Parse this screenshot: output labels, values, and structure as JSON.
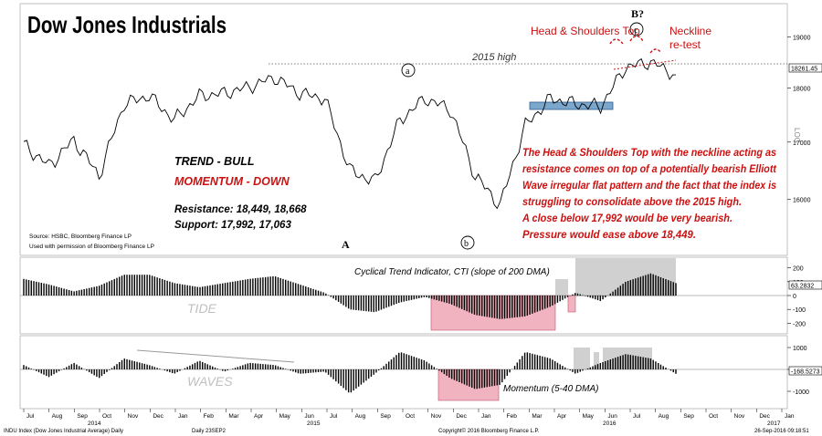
{
  "title": "Dow Jones Industrials",
  "labels": {
    "high_2015": "2015 high",
    "hs_top": "Head & Shoulders Top",
    "b_q": "B?",
    "c": "c",
    "a": "a",
    "b": "b",
    "A": "A",
    "neckline": [
      "Neckline",
      "re-test"
    ],
    "log": "LOG",
    "trend": "TREND - BULL",
    "momentum_down": "MOMENTUM - DOWN",
    "resistance": "Resistance: 18,449, 18,668",
    "support": "Support: 17,992, 17,063",
    "source": [
      "Source: HSBC, Bloomberg Finance LP",
      "Used with permission of Bloomberg Finance LP"
    ],
    "commentary": [
      "The Head & Shoulders Top with the neckline acting as",
      "resistance comes on top of a potentially bearish Elliott",
      "Wave irregular flat pattern and the fact that the index is",
      "struggling to consolidate above the 2015 high.",
      "A close below 17,992 would be very bearish.",
      "Pressure would ease above 18,449."
    ],
    "cti": "Cyclical Trend Indicator, CTI (slope of 200 DMA)",
    "tide": "TIDE",
    "waves": "WAVES",
    "momentum": "Momentum (5-40 DMA)"
  },
  "colors": {
    "price": "#000000",
    "annotation_red": "#cc1111",
    "support_box": "#7ba7cc",
    "pink_shade": "#f1b3bf",
    "gray_shade": "#c8c8c8"
  },
  "footer": {
    "left": "INDU Index (Dow Jones Industrial Average) Daily",
    "mid": "Daily 23SEP2",
    "copyright": "Copyright© 2016 Bloomberg Finance L.P.",
    "date": "26-Sep-2016 09:18:51"
  },
  "chart_data": [
    {
      "type": "line",
      "name": "price",
      "title": "Dow Jones Industrials",
      "scale": "log",
      "ylim": [
        15200,
        19600
      ],
      "yticks": [
        16000,
        17000,
        18000,
        19000
      ],
      "last_value_label": "18261.45",
      "reference_line": {
        "label": "2015 high",
        "value": 18351
      },
      "x": [
        "2014-07",
        "2014-08",
        "2014-09",
        "2014-10",
        "2014-11",
        "2014-12",
        "2015-01",
        "2015-02",
        "2015-03",
        "2015-04",
        "2015-05",
        "2015-06",
        "2015-07",
        "2015-08",
        "2015-09",
        "2015-10",
        "2015-11",
        "2015-12",
        "2016-01",
        "2016-02",
        "2016-03",
        "2016-04",
        "2016-05",
        "2016-06",
        "2016-07",
        "2016-08",
        "2016-09"
      ],
      "values": [
        16950,
        16580,
        17040,
        16400,
        17700,
        17850,
        17400,
        17850,
        17900,
        18020,
        18200,
        17900,
        17800,
        16500,
        16300,
        17400,
        17800,
        17600,
        16400,
        15900,
        17300,
        17800,
        17700,
        17650,
        18400,
        18500,
        18250
      ]
    },
    {
      "type": "bar",
      "name": "Cyclical Trend Indicator, CTI (slope of 200 DMA)",
      "ylim": [
        -250,
        250
      ],
      "yticks": [
        -200,
        -100,
        0,
        100,
        200
      ],
      "last_value_label": "63.2832",
      "x": [
        "2014-07",
        "2014-08",
        "2014-09",
        "2014-10",
        "2014-11",
        "2014-12",
        "2015-01",
        "2015-02",
        "2015-03",
        "2015-04",
        "2015-05",
        "2015-06",
        "2015-07",
        "2015-08",
        "2015-09",
        "2015-10",
        "2015-11",
        "2015-12",
        "2016-01",
        "2016-02",
        "2016-03",
        "2016-04",
        "2016-05",
        "2016-06",
        "2016-07",
        "2016-08",
        "2016-09"
      ],
      "values": [
        120,
        80,
        30,
        70,
        150,
        150,
        90,
        60,
        90,
        120,
        140,
        80,
        20,
        -100,
        -120,
        -50,
        -10,
        -60,
        -140,
        -170,
        -150,
        -80,
        20,
        -40,
        100,
        160,
        90
      ]
    },
    {
      "type": "bar",
      "name": "Momentum (5-40 DMA)",
      "ylim": [
        -1500,
        1500
      ],
      "yticks": [
        -1000,
        0,
        1000
      ],
      "last_value_label": "-168.5273",
      "x": [
        "2014-07",
        "2014-08",
        "2014-09",
        "2014-10",
        "2014-11",
        "2014-12",
        "2015-01",
        "2015-02",
        "2015-03",
        "2015-04",
        "2015-05",
        "2015-06",
        "2015-07",
        "2015-08",
        "2015-09",
        "2015-10",
        "2015-11",
        "2015-12",
        "2016-01",
        "2016-02",
        "2016-03",
        "2016-04",
        "2016-05",
        "2016-06",
        "2016-07",
        "2016-08",
        "2016-09"
      ],
      "values": [
        200,
        -350,
        300,
        -400,
        500,
        200,
        -200,
        400,
        -100,
        300,
        200,
        -200,
        -100,
        -1100,
        -200,
        800,
        400,
        -400,
        -900,
        -700,
        800,
        500,
        -200,
        300,
        700,
        500,
        -200
      ]
    }
  ],
  "x_axis": {
    "months": [
      "Jul",
      "Aug",
      "Sep",
      "Oct",
      "Nov",
      "Dec",
      "Jan",
      "Feb",
      "Mar",
      "Apr",
      "May",
      "Jun",
      "Jul",
      "Aug",
      "Sep",
      "Oct",
      "Nov",
      "Dec",
      "Jan",
      "Feb",
      "Mar",
      "Apr",
      "May",
      "Jun",
      "Jul",
      "Aug",
      "Sep",
      "Oct",
      "Nov",
      "Dec",
      "Jan"
    ],
    "years": [
      "2014",
      "2015",
      "2016",
      "2017"
    ]
  }
}
